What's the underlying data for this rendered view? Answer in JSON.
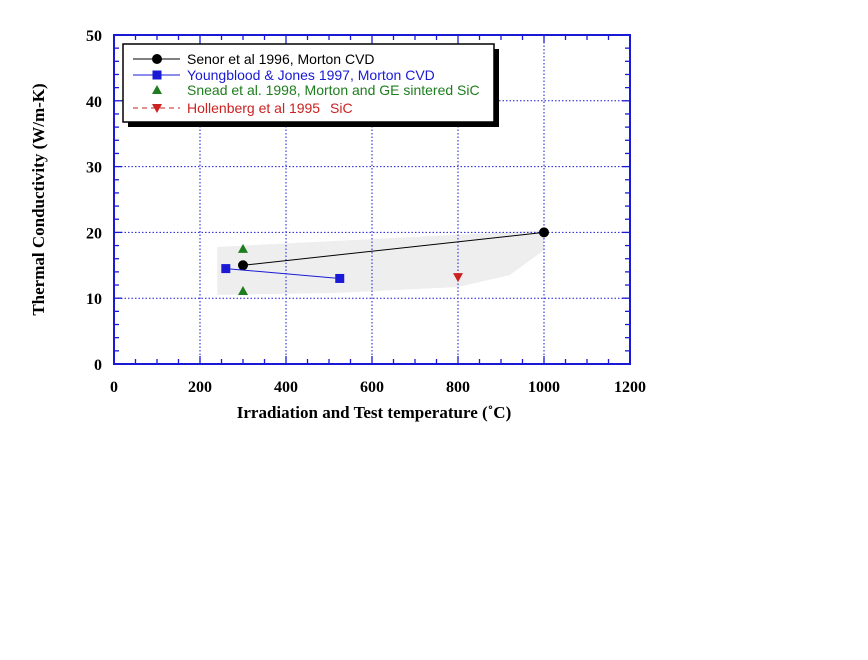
{
  "chart_data": {
    "type": "scatter",
    "title": "",
    "xlabel": "Irradiation and Test temperature (˚C)",
    "ylabel": "Thermal Conductivity (W/m-K)",
    "xlim": [
      0,
      1200
    ],
    "ylim": [
      0,
      50
    ],
    "x_ticks": [
      0,
      200,
      400,
      600,
      800,
      1000,
      1200
    ],
    "y_ticks": [
      0,
      10,
      20,
      30,
      40,
      50
    ],
    "grid": true,
    "legend_position": "top-left",
    "shaded_region": [
      [
        240,
        17.8
      ],
      [
        1000,
        20.3
      ],
      [
        1000,
        17.3
      ],
      [
        920,
        13.5
      ],
      [
        800,
        11.7
      ],
      [
        520,
        10.8
      ],
      [
        240,
        10.5
      ]
    ],
    "shaded_color": "#eeeeee",
    "series": [
      {
        "name": "Senor et al 1996, Morton CVD",
        "color": "#000000",
        "marker": "circle",
        "line": "solid",
        "x": [
          300,
          1000
        ],
        "y": [
          15,
          20
        ]
      },
      {
        "name": "Youngblood & Jones 1997, Morton CVD",
        "color": "#1a1ad6",
        "marker": "square",
        "line": "solid",
        "x": [
          260,
          525
        ],
        "y": [
          14.5,
          13
        ]
      },
      {
        "name": "Snead et al. 1998, Morton and GE sintered SiC",
        "color": "#1e7d1e",
        "marker": "triangle-up",
        "line": "none",
        "x": [
          300,
          300
        ],
        "y": [
          17.5,
          11.1
        ]
      },
      {
        "name": "Hollenberg et al 1995",
        "extra_label": "SiC",
        "color": "#cc2222",
        "marker": "triangle-down",
        "line": "dashed",
        "x": [
          800
        ],
        "y": [
          13.2
        ]
      }
    ]
  }
}
